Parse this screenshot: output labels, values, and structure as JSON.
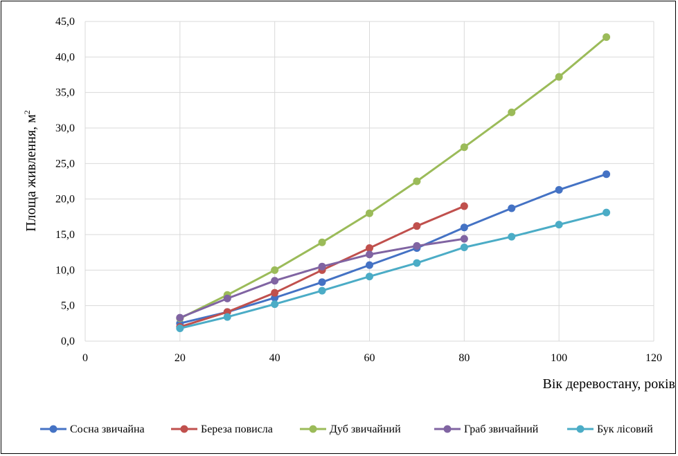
{
  "chart_data": {
    "type": "line",
    "xlabel": "Вік деревостану, років",
    "ylabel_text": "Площа живлення, м",
    "ylabel_sup": "2",
    "xlim": [
      0,
      120
    ],
    "ylim": [
      0,
      45
    ],
    "x_ticks": [
      0,
      20,
      40,
      60,
      80,
      100,
      120
    ],
    "y_ticks": [
      "0,0",
      "5,0",
      "10,0",
      "15,0",
      "20,0",
      "25,0",
      "30,0",
      "35,0",
      "40,0",
      "45,0"
    ],
    "y_tick_values": [
      0,
      5,
      10,
      15,
      20,
      25,
      30,
      35,
      40,
      45
    ],
    "grid": true,
    "legend_position": "bottom",
    "series": [
      {
        "name": "Сосна звичайна",
        "color": "#4472C4",
        "x": [
          20,
          30,
          40,
          50,
          60,
          70,
          80,
          90,
          100,
          110
        ],
        "values": [
          2.5,
          4.1,
          6.1,
          8.3,
          10.7,
          13.1,
          16.0,
          18.7,
          21.3,
          23.5
        ]
      },
      {
        "name": "Береза повисла",
        "color": "#C0504D",
        "x": [
          20,
          30,
          40,
          50,
          60,
          70,
          80
        ],
        "values": [
          2.0,
          4.1,
          6.8,
          10.0,
          13.1,
          16.2,
          19.0
        ]
      },
      {
        "name": "Дуб звичайний",
        "color": "#9BBB59",
        "x": [
          20,
          30,
          40,
          50,
          60,
          70,
          80,
          90,
          100,
          110
        ],
        "values": [
          3.2,
          6.5,
          10.0,
          13.9,
          18.0,
          22.5,
          27.3,
          32.2,
          37.2,
          42.8
        ]
      },
      {
        "name": "Граб звичайний",
        "color": "#8064A2",
        "x": [
          20,
          30,
          40,
          50,
          60,
          70,
          80
        ],
        "values": [
          3.3,
          6.0,
          8.5,
          10.5,
          12.2,
          13.4,
          14.4
        ]
      },
      {
        "name": "Бук лісовий",
        "color": "#4BACC6",
        "x": [
          20,
          30,
          40,
          50,
          60,
          70,
          80,
          90,
          100,
          110
        ],
        "values": [
          1.8,
          3.4,
          5.2,
          7.1,
          9.1,
          11.0,
          13.2,
          14.7,
          16.4,
          18.1
        ]
      }
    ]
  }
}
